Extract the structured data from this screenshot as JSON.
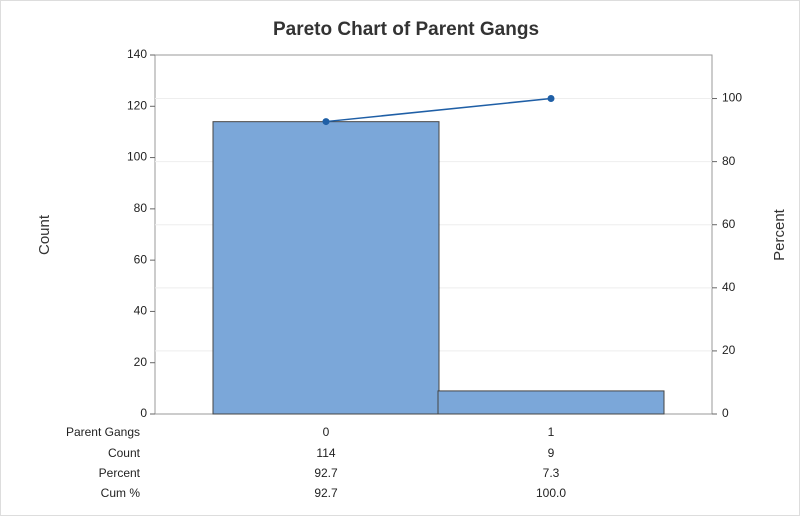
{
  "chart_data": {
    "type": "pareto",
    "title": "Pareto Chart of Parent Gangs",
    "x_label": "Parent Gangs",
    "y_label": "Count",
    "y2_label": "Percent",
    "categories": [
      "0",
      "1"
    ],
    "series": [
      {
        "name": "Count",
        "color": "#7ba7d9",
        "values": [
          114,
          9
        ]
      },
      {
        "name": "Percent",
        "values": [
          92.7,
          7.3
        ]
      },
      {
        "name": "Cum %",
        "color": "#1f5fa6",
        "axis": "y2",
        "values": [
          92.7,
          100
        ],
        "value_labels": [
          "92.7",
          "100.0"
        ]
      }
    ],
    "ylim": [
      0,
      140
    ],
    "yticks": [
      0,
      20,
      40,
      60,
      80,
      100,
      120,
      140
    ],
    "y2lim": [
      0,
      113.8
    ],
    "y2ticks": [
      0,
      20,
      40,
      60,
      80,
      100
    ],
    "grid": true
  }
}
